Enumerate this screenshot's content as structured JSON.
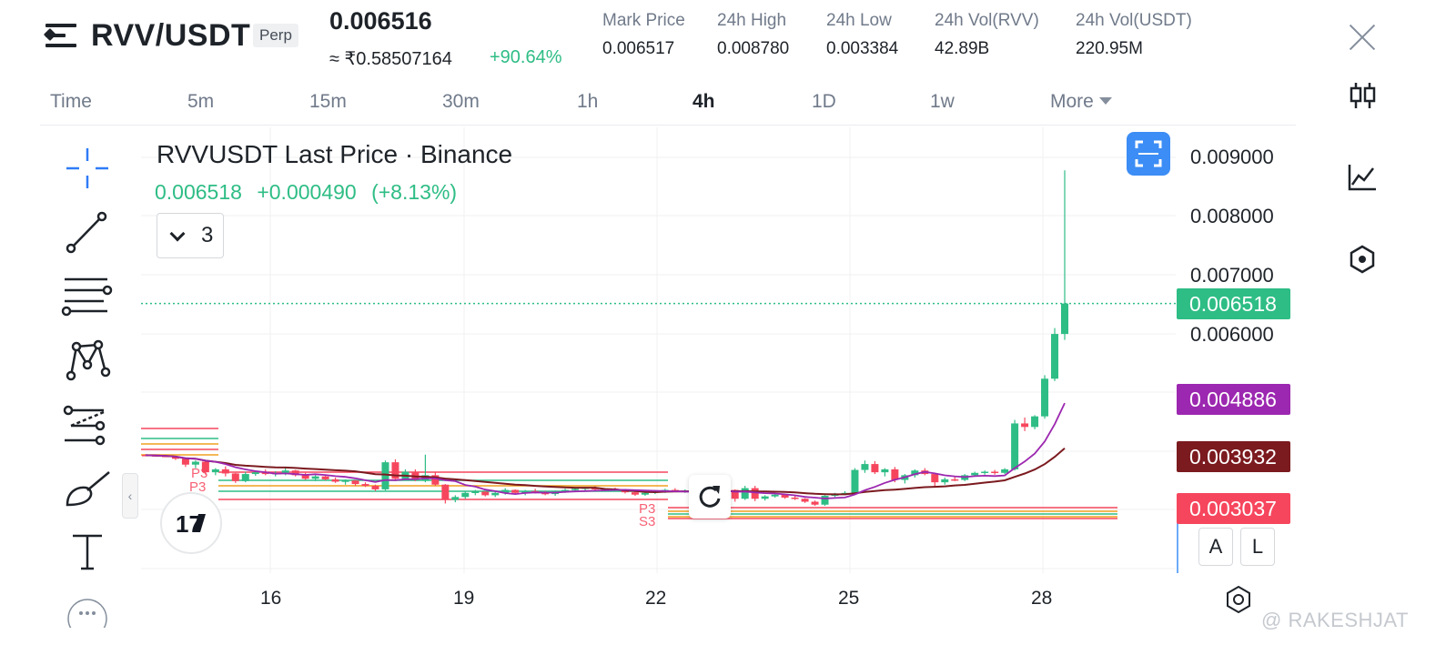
{
  "header": {
    "symbol": "RVV/USDT",
    "contract_type": "Perp",
    "last_price": "0.006516",
    "inr_price": "≈ ₹0.58507164",
    "change_pct": "+90.64%",
    "stats": [
      {
        "label": "Mark Price",
        "value": "0.006517"
      },
      {
        "label": "24h High",
        "value": "0.008780"
      },
      {
        "label": "24h Low",
        "value": "0.003384"
      },
      {
        "label": "24h Vol(RVV)",
        "value": "42.89B"
      },
      {
        "label": "24h Vol(USDT)",
        "value": "220.95M"
      }
    ]
  },
  "timeframes": [
    "Time",
    "5m",
    "15m",
    "30m",
    "1h",
    "4h",
    "1D",
    "1w",
    "More"
  ],
  "active_timeframe": "4h",
  "chart": {
    "legend_title": "RVVUSDT Last Price · Binance",
    "legend_price": "0.006518",
    "legend_change": "+0.000490",
    "legend_change_pct": "(+8.13%)",
    "indicator_count": "3",
    "y_ticks": [
      "0.009000",
      "0.008000",
      "0.007000",
      "0.006000"
    ],
    "badges": [
      {
        "value": "0.006518",
        "color": "#2ebd85"
      },
      {
        "value": "0.004886",
        "color": "#9c27b0"
      },
      {
        "value": "0.003932",
        "color": "#7b1a1f"
      },
      {
        "value": "0.003037",
        "color": "#f6465d"
      }
    ],
    "x_ticks": [
      "16",
      "19",
      "22",
      "25",
      "28"
    ],
    "pivot_labels": [
      "P3",
      "P3",
      "S3",
      "P3",
      "S3"
    ],
    "scale_buttons": [
      "A",
      "L"
    ],
    "logo_text": "17"
  },
  "colors": {
    "up": "#2ebd85",
    "down": "#f6465d",
    "ma_fast": "#9c27b0",
    "ma_slow": "#7b1a1f",
    "accent": "#3c8df5"
  },
  "watermark": "@ RAKESHJAT"
}
